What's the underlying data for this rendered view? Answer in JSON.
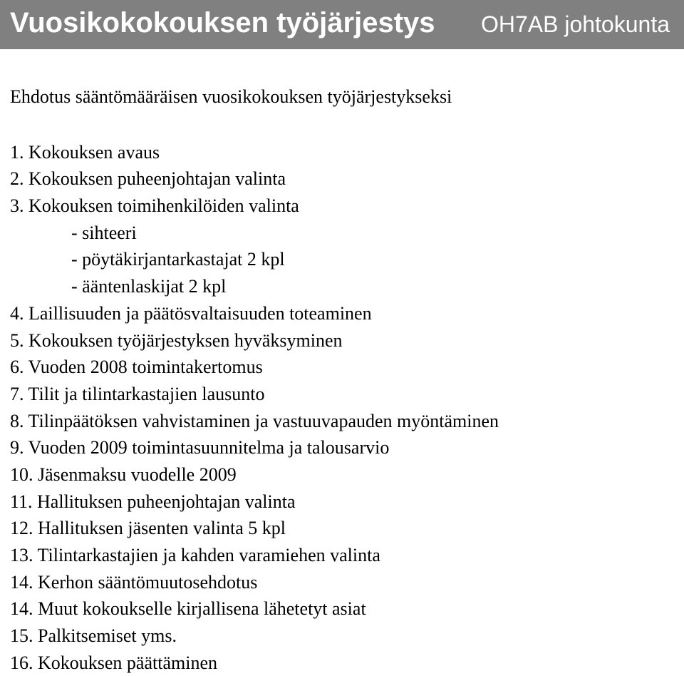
{
  "header": {
    "title": "Vuosikokokouksen työjärjestys",
    "org": "OH7AB johtokunta",
    "bg_color": "#808080",
    "text_color": "#ffffff"
  },
  "intro": "Ehdotus sääntömääräisen vuosikokouksen työjärjestykseksi",
  "agenda": [
    {
      "text": "1. Kokouksen avaus"
    },
    {
      "text": "2. Kokouksen puheenjohtajan valinta"
    },
    {
      "text": "3. Kokouksen toimihenkilöiden valinta",
      "sub": [
        "- sihteeri",
        "- pöytäkirjantarkastajat 2 kpl",
        "- ääntenlaskijat 2 kpl"
      ]
    },
    {
      "text": "4. Laillisuuden ja päätösvaltaisuuden toteaminen"
    },
    {
      "text": "5. Kokouksen työjärjestyksen hyväksyminen"
    },
    {
      "text": "6. Vuoden 2008 toimintakertomus"
    },
    {
      "text": "7. Tilit ja tilintarkastajien lausunto"
    },
    {
      "text": "8. Tilinpäätöksen vahvistaminen ja vastuuvapauden myöntäminen"
    },
    {
      "text": "9. Vuoden 2009 toimintasuunnitelma ja talousarvio"
    },
    {
      "text": "10. Jäsenmaksu vuodelle 2009"
    },
    {
      "text": "11. Hallituksen puheenjohtajan valinta"
    },
    {
      "text": "12. Hallituksen jäsenten valinta 5 kpl"
    },
    {
      "text": "13. Tilintarkastajien ja kahden varamiehen valinta"
    },
    {
      "text": "14. Kerhon sääntömuutosehdotus"
    },
    {
      "text": "14. Muut kokoukselle kirjallisena lähetetyt asiat"
    },
    {
      "text": "15. Palkitsemiset yms."
    },
    {
      "text": "16. Kokouksen päättäminen"
    }
  ]
}
